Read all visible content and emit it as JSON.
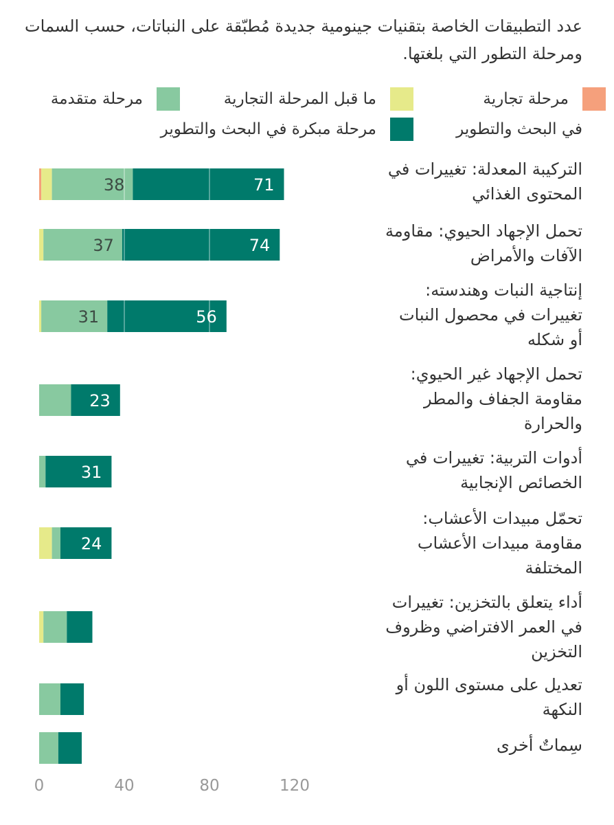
{
  "chart_data": {
    "type": "bar",
    "orientation": "horizontal",
    "stacked": true,
    "title": "عدد التطبيقات الخاصة بتقنيات جينومية جديدة مُطبّقة على النباتات، حسب السمات ومرحلة التطور التي بلغتها.",
    "legend": [
      {
        "name": "مرحلة تجارية",
        "color": "#f5a07c"
      },
      {
        "name": "ما قبل المرحلة التجارية",
        "color": "#e6ea8a"
      },
      {
        "name": "مرحلة متقدمة",
        "color": "#88c9a0"
      },
      {
        "name": "في البحث والتطوير",
        "name2": "مرحلة مبكرة في البحث والتطوير",
        "color": "#007a6b"
      }
    ],
    "categories": [
      "التركيبة المعدلة: تغييرات في المحتوى الغذائي",
      "تحمل الإجهاد الحيوي: مقاومة الآفات والأمراض",
      "إنتاجية النبات وهندسته: تغييرات في محصول النبات أو شكله",
      "تحمل الإجهاد غير الحيوي: مقاومة الجفاف والمطر والحرارة",
      "أدوات التربية: تغييرات في الخصائص الإنجابية",
      "تحمّل مبيدات الأعشاب: مقاومة مبيدات الأعشاب المختلفة",
      "أداء يتعلق بالتخزين: تغييرات في العمر الافتراضي وظروف التخزين",
      "تعديل على مستوى اللون أو النكهة",
      "سِماتٌ أخرى"
    ],
    "series": [
      {
        "name": "مرحلة تجارية",
        "values": [
          1,
          0,
          0,
          0,
          0,
          0,
          0,
          0,
          0
        ]
      },
      {
        "name": "ما قبل المرحلة التجارية",
        "values": [
          5,
          2,
          1,
          0,
          0,
          6,
          2,
          0,
          0
        ]
      },
      {
        "name": "مرحلة متقدمة",
        "values": [
          38,
          37,
          31,
          15,
          3,
          4,
          11,
          10,
          9
        ]
      },
      {
        "name": "مرحلة مبكرة في البحث والتطوير",
        "values": [
          71,
          74,
          56,
          23,
          31,
          24,
          12,
          11,
          11
        ]
      }
    ],
    "value_labels": {
      "advanced": [
        "38",
        "37",
        "31",
        "",
        "",
        "",
        "",
        "",
        ""
      ],
      "early": [
        "71",
        "74",
        "56",
        "23",
        "31",
        "24",
        "",
        "",
        ""
      ]
    },
    "xticks": [
      "0",
      "40",
      "80",
      "120"
    ],
    "xlim": [
      0,
      120
    ],
    "grid": true
  }
}
